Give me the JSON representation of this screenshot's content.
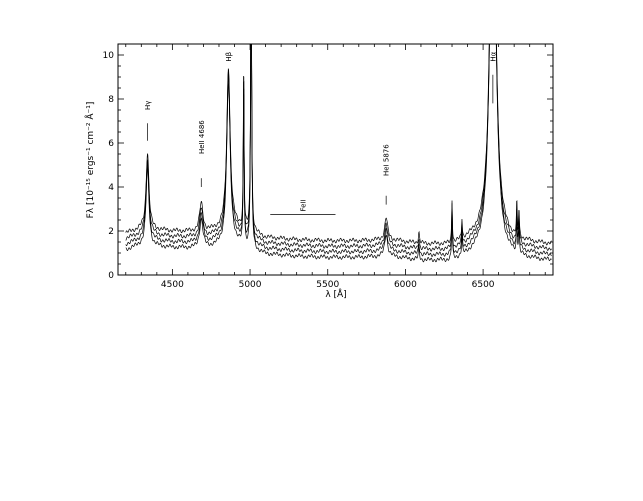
{
  "chart_data": {
    "type": "line",
    "xlabel": "λ [Å]",
    "ylabel": "Fλ [10⁻¹⁵ ergs⁻¹ cm⁻² Å⁻¹]",
    "xlim": [
      4150,
      6950
    ],
    "ylim": [
      0,
      10.5
    ],
    "xticks": [
      4500,
      5000,
      5500,
      6000,
      6500
    ],
    "yticks": [
      0,
      2,
      4,
      6,
      8,
      10
    ],
    "grid": false,
    "series_offsets": [
      0.0,
      0.25,
      0.5,
      0.75
    ],
    "continuum": {
      "x": [
        4200,
        4300,
        4500,
        4700,
        4900,
        5100,
        5300,
        5500,
        5700,
        5900,
        6100,
        6300,
        6500,
        6700,
        6900
      ],
      "y": [
        1.7,
        1.9,
        1.8,
        1.75,
        2.0,
        1.5,
        1.4,
        1.35,
        1.35,
        1.4,
        1.2,
        1.15,
        1.6,
        1.3,
        1.2
      ]
    },
    "lines": [
      {
        "center": 4340,
        "height": 3.5,
        "width": 15
      },
      {
        "center": 4686,
        "height": 1.3,
        "width": 18
      },
      {
        "center": 4861,
        "height": 7.3,
        "width": 18
      },
      {
        "center": 4959,
        "height": 7.5,
        "width": 4
      },
      {
        "center": 5007,
        "height": 14.0,
        "width": 5
      },
      {
        "center": 5876,
        "height": 1.0,
        "width": 15
      },
      {
        "center": 6087,
        "height": 0.5,
        "width": 6
      },
      {
        "center": 6300,
        "height": 2.0,
        "width": 4
      },
      {
        "center": 6364,
        "height": 0.9,
        "width": 4
      },
      {
        "center": 6563,
        "height": 20.0,
        "width": 28
      },
      {
        "center": 6717,
        "height": 1.5,
        "width": 4
      },
      {
        "center": 6731,
        "height": 1.2,
        "width": 4
      }
    ],
    "annotations": [
      {
        "text": "Hγ",
        "x": 4340,
        "y_top": 7.5,
        "y_tick_top": 6.9,
        "y_tick_bottom": 6.1
      },
      {
        "text": "HeII 4686",
        "x": 4686,
        "y_top": 5.5,
        "y_tick_top": 4.4,
        "y_tick_bottom": 4.0
      },
      {
        "text": "Hβ",
        "x": 4861,
        "y_top": 9.7,
        "y_tick_top": null,
        "y_tick_bottom": null
      },
      {
        "text": "HeI 5876",
        "x": 5876,
        "y_top": 4.5,
        "y_tick_top": 3.6,
        "y_tick_bottom": 3.2
      },
      {
        "text": "Hα",
        "x": 6563,
        "y_top": 9.7,
        "y_tick_top": 9.1,
        "y_tick_bottom": 7.8
      }
    ],
    "feii": {
      "text": "FeII",
      "x_start": 5130,
      "x_end": 5550,
      "y": 2.75
    }
  }
}
